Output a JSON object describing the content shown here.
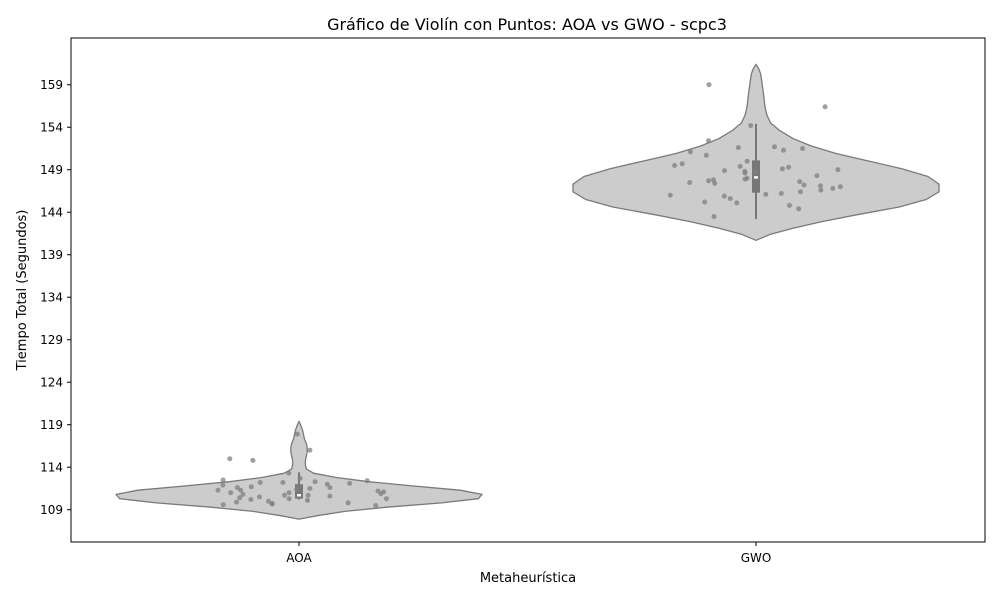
{
  "chart_data": {
    "type": "violin",
    "title": "Gráfico de Violín con Puntos: AOA vs GWO - scpc3",
    "xlabel": "Metaheurística",
    "ylabel": "Tiempo Total (Segundos)",
    "categories": [
      "AOA",
      "GWO"
    ],
    "ylim": [
      105.2,
      164.5
    ],
    "yticks": [
      109,
      114,
      119,
      124,
      129,
      134,
      139,
      144,
      149,
      154,
      159
    ],
    "grid": false,
    "colors": {
      "violin_fill": "#cccccc",
      "violin_edge": "#7a7a7a",
      "box": "#777777",
      "median": "#ffffff",
      "point": "#7f7f7f"
    },
    "violins": [
      {
        "category": "AOA",
        "min": 110.2,
        "q1": 110.3,
        "median": 110.7,
        "q3": 112.0,
        "max": 113.4,
        "kde_range": [
          107.9,
          119.4
        ],
        "density": [
          [
            107.9,
            0.0
          ],
          [
            108.3,
            0.1
          ],
          [
            108.8,
            0.25
          ],
          [
            109.3,
            0.48
          ],
          [
            109.8,
            0.78
          ],
          [
            110.3,
            0.98
          ],
          [
            110.8,
            1.0
          ],
          [
            111.3,
            0.88
          ],
          [
            111.8,
            0.62
          ],
          [
            112.3,
            0.38
          ],
          [
            112.8,
            0.2
          ],
          [
            113.3,
            0.08
          ],
          [
            113.8,
            0.04
          ],
          [
            114.3,
            0.035
          ],
          [
            114.8,
            0.035
          ],
          [
            115.3,
            0.04
          ],
          [
            115.8,
            0.045
          ],
          [
            116.3,
            0.045
          ],
          [
            116.8,
            0.04
          ],
          [
            117.3,
            0.03
          ],
          [
            117.8,
            0.025
          ],
          [
            118.3,
            0.02
          ],
          [
            118.8,
            0.012
          ],
          [
            119.4,
            0.0
          ]
        ],
        "points": [
          117.9,
          116.0,
          115.0,
          114.8,
          113.3,
          112.7,
          112.5,
          112.4,
          112.3,
          112.2,
          112.2,
          112.1,
          112.0,
          111.9,
          111.8,
          111.7,
          111.6,
          111.6,
          111.5,
          111.4,
          111.3,
          111.3,
          111.2,
          111.1,
          111.0,
          111.0,
          110.9,
          110.8,
          110.7,
          110.7,
          110.6,
          110.5,
          110.4,
          110.3,
          110.3,
          110.2,
          110.1,
          110.0,
          109.9,
          109.8,
          109.7,
          109.7,
          109.6,
          109.5
        ]
      },
      {
        "category": "GWO",
        "min": 143.2,
        "q1": 146.3,
        "median": 148.1,
        "q3": 150.1,
        "max": 154.4,
        "kde_range": [
          140.7,
          161.4
        ],
        "density": [
          [
            140.7,
            0.0
          ],
          [
            141.4,
            0.08
          ],
          [
            142.1,
            0.2
          ],
          [
            142.9,
            0.36
          ],
          [
            143.7,
            0.55
          ],
          [
            144.6,
            0.78
          ],
          [
            145.5,
            0.93
          ],
          [
            146.4,
            1.0
          ],
          [
            147.3,
            1.0
          ],
          [
            148.2,
            0.94
          ],
          [
            149.1,
            0.8
          ],
          [
            150.0,
            0.62
          ],
          [
            150.9,
            0.44
          ],
          [
            151.8,
            0.3
          ],
          [
            152.7,
            0.2
          ],
          [
            153.6,
            0.13
          ],
          [
            154.5,
            0.08
          ],
          [
            155.4,
            0.06
          ],
          [
            156.3,
            0.05
          ],
          [
            157.2,
            0.045
          ],
          [
            158.1,
            0.04
          ],
          [
            158.9,
            0.035
          ],
          [
            159.6,
            0.03
          ],
          [
            160.3,
            0.025
          ],
          [
            160.9,
            0.015
          ],
          [
            161.4,
            0.0
          ]
        ],
        "points": [
          159.0,
          156.4,
          154.2,
          152.4,
          151.7,
          151.6,
          151.5,
          151.3,
          151.1,
          150.7,
          150.0,
          149.7,
          149.5,
          149.4,
          149.3,
          149.1,
          149.0,
          148.9,
          148.8,
          148.7,
          148.6,
          148.3,
          148.0,
          147.9,
          147.8,
          147.7,
          147.6,
          147.5,
          147.4,
          147.2,
          147.1,
          147.0,
          146.8,
          146.6,
          146.4,
          146.2,
          146.1,
          146.0,
          145.9,
          145.6,
          145.2,
          145.1,
          144.8,
          144.4,
          143.5
        ]
      }
    ]
  }
}
